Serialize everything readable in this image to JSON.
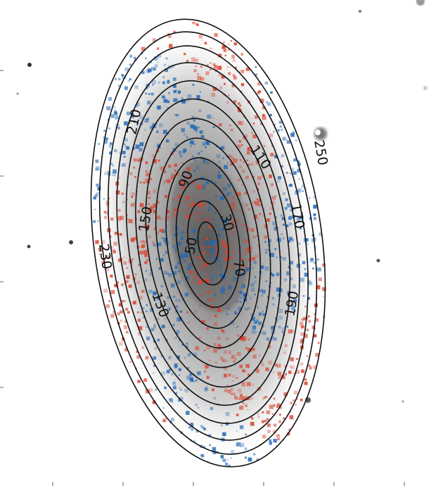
{
  "figure": {
    "description_type": "galaxy image with elliptical contour overlay",
    "colors": {
      "contour": "#111111",
      "galaxy_core": "#6a6a6a",
      "galaxy_disk": "#b8b8b8",
      "red_residual": "#d9412b",
      "blue_residual": "#1f66b5",
      "background": "#ffffff"
    },
    "contour_labels": [
      "250",
      "210",
      "170",
      "110",
      "90",
      "150",
      "30",
      "50",
      "70",
      "230",
      "130",
      "190",
      "170"
    ]
  }
}
